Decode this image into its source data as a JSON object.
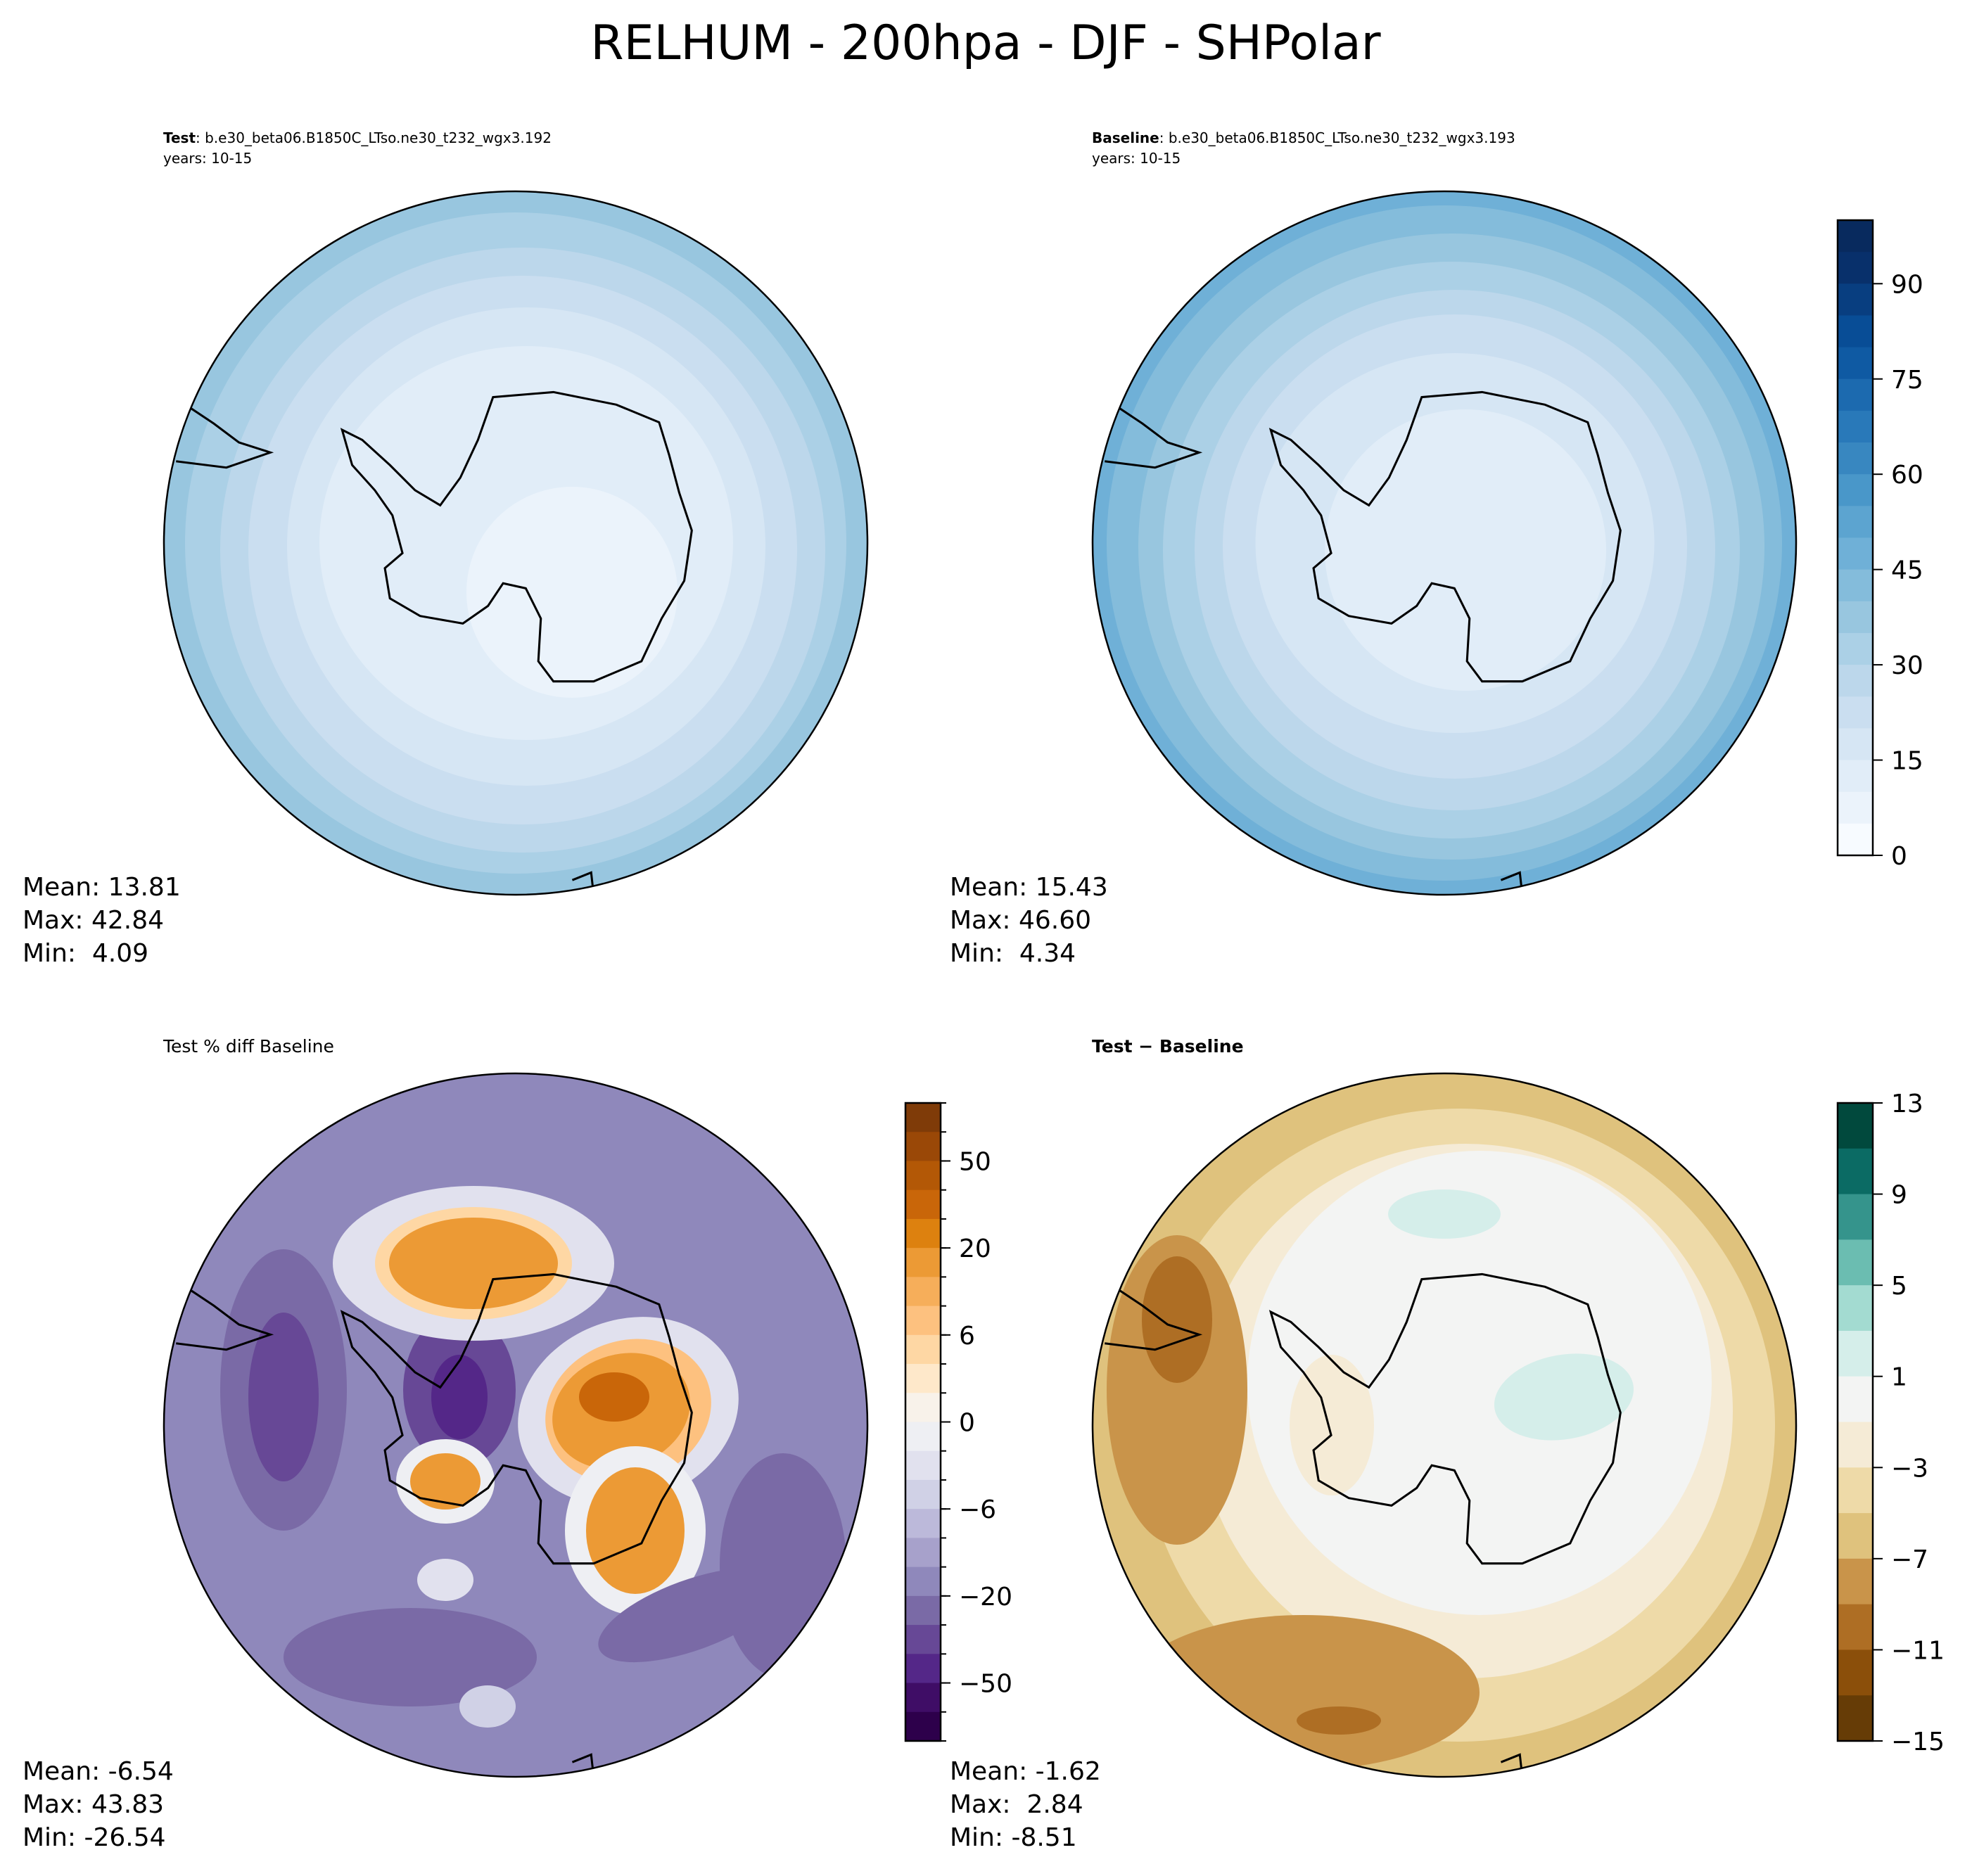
{
  "title": "RELHUM - 200hpa - DJF - SHPolar",
  "chart_data": [
    {
      "type": "heatmap",
      "projection": "south-polar-stereographic",
      "panel": "top-left",
      "label_bold": "Test",
      "label_rest": ": b.e30_beta06.B1850C_LTso.ne30_t232_wgx3.192",
      "years": "years: 10-15",
      "stats": {
        "mean": "Mean: 13.81",
        "max": "Max: 42.84",
        "min": "Min:  4.09"
      },
      "colormap": "Blues",
      "range": [
        0,
        100
      ]
    },
    {
      "type": "heatmap",
      "projection": "south-polar-stereographic",
      "panel": "top-right",
      "label_bold": "Baseline",
      "label_rest": ": b.e30_beta06.B1850C_LTso.ne30_t232_wgx3.193",
      "years": "years: 10-15",
      "stats": {
        "mean": "Mean: 15.43",
        "max": "Max: 46.60",
        "min": "Min:  4.34"
      },
      "colormap": "Blues",
      "range": [
        0,
        100
      ],
      "colorbar": {
        "levels": [
          0,
          5,
          10,
          15,
          20,
          25,
          30,
          35,
          40,
          45,
          50,
          55,
          60,
          65,
          70,
          75,
          80,
          85,
          90,
          95,
          100
        ],
        "ticks": [
          "0",
          "15",
          "30",
          "45",
          "60",
          "75",
          "90"
        ],
        "tick_values": [
          0,
          15,
          30,
          45,
          60,
          75,
          90
        ],
        "colors": [
          "#f7fbff",
          "#ebf3fb",
          "#e1edf8",
          "#d6e6f4",
          "#cadef0",
          "#bcd7eb",
          "#abd0e6",
          "#98c6df",
          "#84bcdb",
          "#6fb0d7",
          "#5ca4d0",
          "#4997c9",
          "#3887c0",
          "#2979b9",
          "#1c6aaf",
          "#0f5aa3",
          "#084d96",
          "#083e80",
          "#08306b",
          "#082a5e"
        ]
      }
    },
    {
      "type": "heatmap",
      "projection": "south-polar-stereographic",
      "panel": "bottom-left",
      "label_plain": "Test % diff Baseline",
      "stats": {
        "mean": "Mean: -6.54",
        "max": "Max: 43.83",
        "min": "Min: -26.54"
      },
      "colormap": "PuOr_r",
      "colorbar": {
        "ticks": [
          "50",
          "20",
          "6",
          "0",
          "−6",
          "−20",
          "−50"
        ],
        "tick_values": [
          50,
          20,
          6,
          0,
          -6,
          -20,
          -50
        ],
        "colors_top_to_bottom": [
          "#7f3b08",
          "#9a4807",
          "#b35806",
          "#c96609",
          "#dd810f",
          "#ec9a35",
          "#f6ae5a",
          "#fdc17f",
          "#fed7a4",
          "#fee8ca",
          "#f8f2ea",
          "#eeeff3",
          "#e1e1ee",
          "#d0d1e6",
          "#bcb9da",
          "#a7a1cb",
          "#8f88bb",
          "#7a6aa6",
          "#674896",
          "#542788",
          "#3f0d66",
          "#2d004b"
        ]
      }
    },
    {
      "type": "heatmap",
      "projection": "south-polar-stereographic",
      "panel": "bottom-right",
      "label_bold": "Test − Baseline",
      "stats": {
        "mean": "Mean: -1.62",
        "max": "Max:  2.84",
        "min": "Min: -8.51"
      },
      "colormap": "BrBG",
      "range": [
        -15,
        13
      ],
      "colorbar": {
        "levels": [
          -15,
          -13,
          -11,
          -9,
          -7,
          -5,
          -3,
          -1,
          1,
          3,
          5,
          7,
          9,
          11,
          13
        ],
        "ticks": [
          "13",
          "9",
          "5",
          "1",
          "−3",
          "−7",
          "−11",
          "−15"
        ],
        "tick_values": [
          13,
          9,
          5,
          1,
          -3,
          -7,
          -11,
          -15
        ],
        "colors": [
          "#663c06",
          "#8b4f0a",
          "#ae6e24",
          "#c9944a",
          "#dfc27d",
          "#eedaa8",
          "#f5ebd6",
          "#f3f4f3",
          "#d5eeea",
          "#a3dbd1",
          "#6bbdb1",
          "#35948c",
          "#0b6b64",
          "#01493d"
        ]
      }
    }
  ]
}
